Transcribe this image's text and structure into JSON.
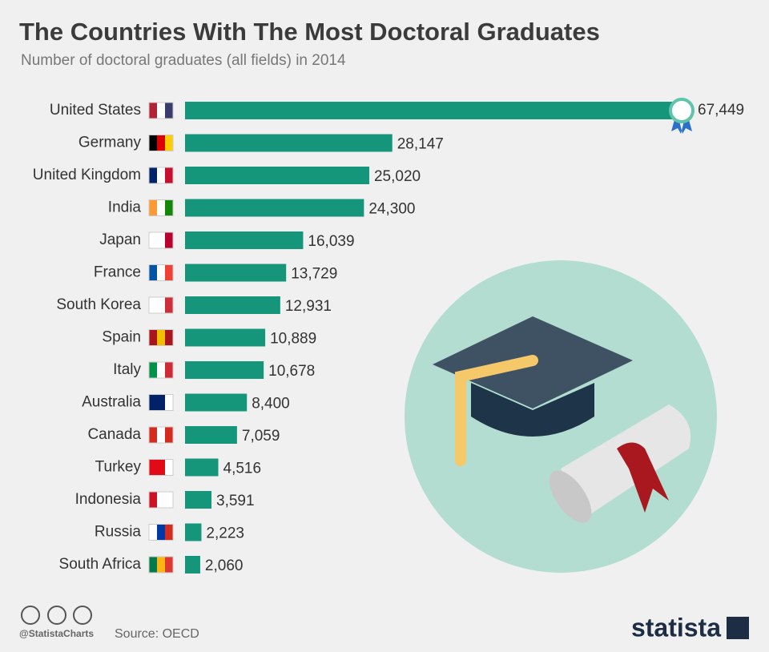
{
  "chart_data": {
    "type": "bar",
    "orientation": "horizontal",
    "title": "The Countries With The Most Doctoral Graduates",
    "subtitle": "Number of doctoral graduates (all fields) in 2014",
    "categories": [
      "United States",
      "Germany",
      "United Kingdom",
      "India",
      "Japan",
      "France",
      "South Korea",
      "Spain",
      "Italy",
      "Australia",
      "Canada",
      "Turkey",
      "Indonesia",
      "Russia",
      "South Africa"
    ],
    "values": [
      67449,
      28147,
      25020,
      24300,
      16039,
      13729,
      12931,
      10889,
      10678,
      8400,
      7059,
      4516,
      3591,
      2223,
      2060
    ],
    "value_labels": [
      "67,449",
      "28,147",
      "25,020",
      "24,300",
      "16,039",
      "13,729",
      "12,931",
      "10,889",
      "10,678",
      "8,400",
      "7,059",
      "4,516",
      "3,591",
      "2,223",
      "2,060"
    ],
    "color": "#15967a"
  },
  "footer": {
    "handle": "@StatistaCharts",
    "source": "Source: OECD",
    "logo": "statista"
  }
}
